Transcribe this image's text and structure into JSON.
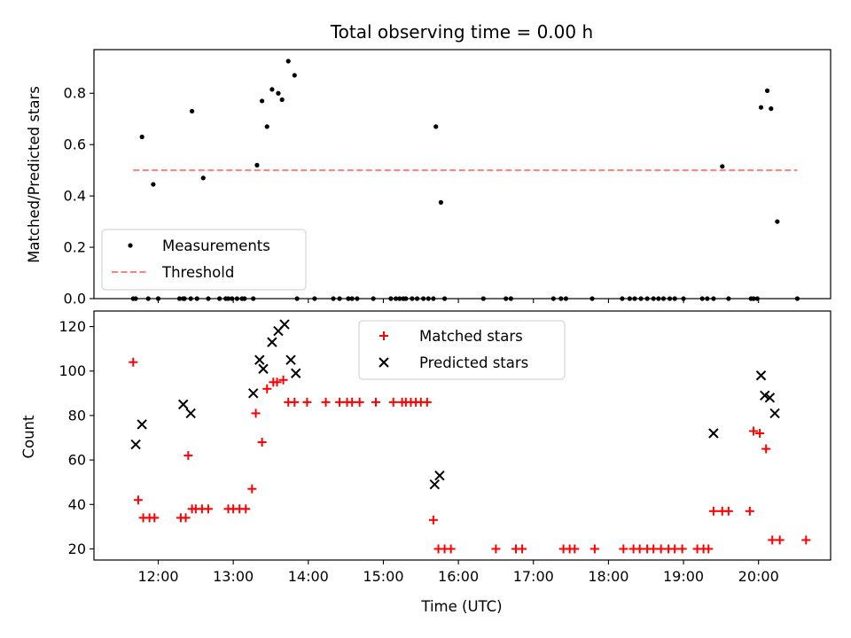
{
  "chart_data": [
    {
      "type": "scatter",
      "title": "Total observing time = 0.00 h",
      "ylabel": "Matched/Predicted stars",
      "ylim": [
        0,
        0.97
      ],
      "yticks": [
        0.0,
        0.2,
        0.4,
        0.6,
        0.8
      ],
      "ytick_labels": [
        "0.0",
        "0.2",
        "0.4",
        "0.6",
        "0.8"
      ],
      "legend_position": "lower-left",
      "series": [
        {
          "name": "Measurements",
          "kind": "scatter",
          "color": "#000000",
          "x": [
            "11:40",
            "11:42",
            "11:47",
            "11:52",
            "11:56",
            "12:00",
            "12:17",
            "12:20",
            "12:21",
            "12:26",
            "12:27",
            "12:31",
            "12:36",
            "12:40",
            "12:49",
            "12:54",
            "12:56",
            "12:59",
            "13:03",
            "13:07",
            "13:09",
            "13:16",
            "13:19",
            "13:23",
            "13:27",
            "13:31",
            "13:36",
            "13:39",
            "13:44",
            "13:49",
            "13:51",
            "14:05",
            "14:20",
            "14:25",
            "14:32",
            "14:35",
            "14:39",
            "14:52",
            "15:06",
            "15:10",
            "15:13",
            "15:16",
            "15:18",
            "15:23",
            "15:27",
            "15:32",
            "15:36",
            "15:40",
            "15:42",
            "15:46",
            "15:49",
            "16:20",
            "16:38",
            "16:42",
            "17:16",
            "17:22",
            "17:26",
            "17:47",
            "18:11",
            "18:17",
            "18:21",
            "18:26",
            "18:31",
            "18:36",
            "18:40",
            "18:44",
            "18:49",
            "18:53",
            "19:00",
            "19:15",
            "19:19",
            "19:24",
            "19:31",
            "19:36",
            "19:54",
            "19:56",
            "19:59",
            "20:02",
            "20:07",
            "20:10",
            "20:15",
            "20:31"
          ],
          "y": [
            0.0,
            0.0,
            0.63,
            0.0,
            0.445,
            0.0,
            0.0,
            0.0,
            0.0,
            0.0,
            0.73,
            0.0,
            0.47,
            0.0,
            0.0,
            0.0,
            0.0,
            0.0,
            0.0,
            0.0,
            0.0,
            0.0,
            0.52,
            0.77,
            0.67,
            0.815,
            0.8,
            0.775,
            0.925,
            0.87,
            0.0,
            0.0,
            0.0,
            0.0,
            0.0,
            0.0,
            0.0,
            0.0,
            0.0,
            0.0,
            0.0,
            0.0,
            0.0,
            0.0,
            0.0,
            0.0,
            0.0,
            0.0,
            0.67,
            0.375,
            0.0,
            0.0,
            0.0,
            0.0,
            0.0,
            0.0,
            0.0,
            0.0,
            0.0,
            0.0,
            0.0,
            0.0,
            0.0,
            0.0,
            0.0,
            0.0,
            0.0,
            0.0,
            0.0,
            0.0,
            0.0,
            0.0,
            0.515,
            0.0,
            0.0,
            0.0,
            0.0,
            0.745,
            0.81,
            0.74,
            0.3,
            0.0
          ]
        },
        {
          "name": "Threshold",
          "kind": "dashed-line",
          "color": "#ff7f7f",
          "x": [
            "11:40",
            "20:31"
          ],
          "y": [
            0.5,
            0.5
          ]
        }
      ]
    },
    {
      "type": "scatter",
      "xlabel": "Time (UTC)",
      "ylabel": "Count",
      "ylim": [
        15,
        127
      ],
      "yticks": [
        20,
        40,
        60,
        80,
        100,
        120
      ],
      "ytick_labels": [
        "20",
        "40",
        "60",
        "80",
        "100",
        "120"
      ],
      "xticks": [
        "12:00",
        "13:00",
        "14:00",
        "15:00",
        "16:00",
        "17:00",
        "18:00",
        "19:00",
        "20:00"
      ],
      "legend_position": "top-center",
      "series": [
        {
          "name": "Matched stars",
          "kind": "scatter-plus",
          "color": "#ff0000",
          "x": [
            "11:40",
            "11:44",
            "11:48",
            "11:53",
            "11:57",
            "12:18",
            "12:22",
            "12:24",
            "12:27",
            "12:30",
            "12:35",
            "12:40",
            "12:56",
            "13:00",
            "13:05",
            "13:10",
            "13:15",
            "13:18",
            "13:23",
            "13:27",
            "13:32",
            "13:35",
            "13:40",
            "13:44",
            "13:49",
            "13:59",
            "14:14",
            "14:25",
            "14:31",
            "14:35",
            "14:41",
            "14:54",
            "15:08",
            "15:15",
            "15:18",
            "15:22",
            "15:26",
            "15:30",
            "15:35",
            "15:40",
            "15:44",
            "15:49",
            "15:54",
            "16:30",
            "16:46",
            "16:51",
            "17:24",
            "17:29",
            "17:33",
            "17:49",
            "18:12",
            "18:20",
            "18:25",
            "18:31",
            "18:36",
            "18:42",
            "18:48",
            "18:53",
            "18:59",
            "19:11",
            "19:16",
            "19:20",
            "19:24",
            "19:31",
            "19:36",
            "19:53",
            "19:56",
            "20:01",
            "20:06",
            "20:11",
            "20:17",
            "20:38"
          ],
          "y": [
            104,
            42,
            34,
            34,
            34,
            34,
            34,
            62,
            38,
            38,
            38,
            38,
            38,
            38,
            38,
            38,
            47,
            81,
            68,
            92,
            95,
            95,
            96,
            86,
            86,
            86,
            86,
            86,
            86,
            86,
            86,
            86,
            86,
            86,
            86,
            86,
            86,
            86,
            86,
            33,
            20,
            20,
            20,
            20,
            20,
            20,
            20,
            20,
            20,
            20,
            20,
            20,
            20,
            20,
            20,
            20,
            20,
            20,
            20,
            20,
            20,
            20,
            37,
            37,
            37,
            37,
            73,
            72,
            65,
            24,
            24,
            24
          ]
        },
        {
          "name": "Predicted stars",
          "kind": "scatter-x",
          "color": "#000000",
          "x": [
            "11:42",
            "11:47",
            "12:20",
            "12:26",
            "13:16",
            "13:21",
            "13:24",
            "13:31",
            "13:36",
            "13:41",
            "13:46",
            "13:50",
            "15:41",
            "15:45",
            "19:24",
            "20:02",
            "20:05",
            "20:09",
            "20:13"
          ],
          "y": [
            67,
            76,
            85,
            81,
            90,
            105,
            101,
            113,
            118,
            121,
            105,
            99,
            49,
            53,
            72,
            98,
            89,
            88,
            81
          ]
        }
      ]
    }
  ]
}
